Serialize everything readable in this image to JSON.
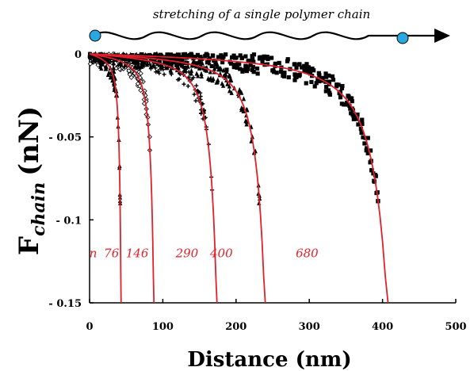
{
  "caption": "stretching of a single polymer chain",
  "chart_data": {
    "type": "scatter",
    "xlabel": "Distance (nm)",
    "ylabel_main": "F",
    "ylabel_sub": "chain",
    "ylabel_unit": "(nN)",
    "xlim": [
      0,
      500
    ],
    "ylim": [
      -0.15,
      0
    ],
    "x_ticks": [
      0,
      100,
      200,
      300,
      400,
      500
    ],
    "x_tick_labels": [
      "0",
      "100",
      "200",
      "300",
      "400",
      "500"
    ],
    "y_ticks": [
      0,
      -0.05,
      -0.1,
      -0.15
    ],
    "y_tick_labels": [
      "0",
      "- 0.05",
      "- 0.1",
      "- 0.15"
    ],
    "grid": false,
    "curve_label_prefix": "n",
    "curve_color": "#e0202a",
    "marker_color": "#000000",
    "series": [
      {
        "name": "76",
        "contour_length_nm": 47,
        "marker": "triangle",
        "max_extension_nm": 45
      },
      {
        "name": "146",
        "contour_length_nm": 96,
        "marker": "diamond",
        "max_extension_nm": 83
      },
      {
        "name": "290",
        "contour_length_nm": 190,
        "marker": "plus",
        "max_extension_nm": 175
      },
      {
        "name": "400",
        "contour_length_nm": 262,
        "marker": "triangle",
        "max_extension_nm": 243
      },
      {
        "name": "680",
        "contour_length_nm": 445,
        "marker": "square",
        "max_extension_nm": 425
      }
    ]
  },
  "schematic": {
    "bead_color": "#29a8e0",
    "chain_color": "#000000"
  }
}
